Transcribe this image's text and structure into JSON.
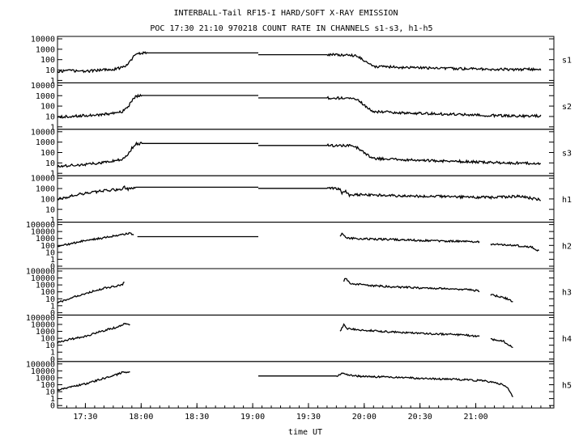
{
  "chart_data": {
    "type": "line",
    "title": "INTERBALL-Tail RF15-I HARD/SOFT X-RAY EMISSION",
    "subtitle": "POC 17:30 21:10 970218  COUNT RATE IN CHANNELS s1-s3, h1-h5",
    "xlabel": "time UT",
    "x_ticks": [
      "17:30",
      "18:00",
      "18:30",
      "19:00",
      "19:30",
      "20:00",
      "20:30",
      "21:00"
    ],
    "xlim_minutes": [
      1035,
      1302
    ],
    "y_scale": "log",
    "grid": false,
    "panels": [
      {
        "name": "s1",
        "y_ticks": [
          "10000",
          "1000",
          "100",
          "10",
          "1"
        ],
        "ylim": [
          0.5,
          20000
        ],
        "segments": [
          [
            [
              1035,
              5
            ],
            [
              1042,
              6
            ],
            [
              1050,
              5
            ],
            [
              1058,
              7
            ],
            [
              1066,
              9
            ],
            [
              1070,
              14
            ],
            [
              1073,
              30
            ],
            [
              1075,
              120
            ],
            [
              1077,
              350
            ],
            [
              1079,
              500
            ],
            [
              1083,
              550
            ],
            [
              1143,
              550
            ]
          ],
          [
            [
              1143,
              350
            ],
            [
              1180,
              350
            ],
            [
              1192,
              330
            ],
            [
              1196,
              250
            ],
            [
              1199,
              120
            ],
            [
              1202,
              40
            ],
            [
              1205,
              18
            ],
            [
              1220,
              14
            ],
            [
              1240,
              11
            ],
            [
              1260,
              9
            ],
            [
              1280,
              8
            ],
            [
              1295,
              9
            ]
          ]
        ]
      },
      {
        "name": "s2",
        "y_ticks": [
          "10000",
          "1000",
          "100",
          "10",
          "1"
        ],
        "ylim": [
          0.5,
          20000
        ],
        "segments": [
          [
            [
              1035,
              6
            ],
            [
              1045,
              8
            ],
            [
              1055,
              10
            ],
            [
              1063,
              14
            ],
            [
              1070,
              25
            ],
            [
              1073,
              80
            ],
            [
              1075,
              400
            ],
            [
              1077,
              1200
            ],
            [
              1080,
              1500
            ],
            [
              1143,
              1500
            ]
          ],
          [
            [
              1143,
              800
            ],
            [
              1180,
              800
            ],
            [
              1192,
              760
            ],
            [
              1196,
              500
            ],
            [
              1199,
              200
            ],
            [
              1202,
              60
            ],
            [
              1205,
              25
            ],
            [
              1220,
              18
            ],
            [
              1240,
              14
            ],
            [
              1260,
              10
            ],
            [
              1280,
              8
            ],
            [
              1295,
              8
            ]
          ]
        ]
      },
      {
        "name": "s3",
        "y_ticks": [
          "10000",
          "1000",
          "100",
          "10",
          "1"
        ],
        "ylim": [
          0.5,
          20000
        ],
        "segments": [
          [
            [
              1035,
              3
            ],
            [
              1045,
              4
            ],
            [
              1055,
              6
            ],
            [
              1063,
              10
            ],
            [
              1070,
              18
            ],
            [
              1073,
              60
            ],
            [
              1075,
              300
            ],
            [
              1077,
              900
            ],
            [
              1080,
              1000
            ],
            [
              1143,
              1000
            ]
          ],
          [
            [
              1143,
              600
            ],
            [
              1180,
              600
            ],
            [
              1192,
              560
            ],
            [
              1196,
              350
            ],
            [
              1199,
              150
            ],
            [
              1202,
              50
            ],
            [
              1205,
              22
            ],
            [
              1220,
              16
            ],
            [
              1240,
              12
            ],
            [
              1260,
              9
            ],
            [
              1280,
              7
            ],
            [
              1295,
              6
            ]
          ]
        ]
      },
      {
        "name": "h1",
        "y_ticks": [
          "10000",
          "1000",
          "100",
          "10",
          "1"
        ],
        "ylim": [
          0.5,
          20000
        ],
        "segments": [
          [
            [
              1035,
              100
            ],
            [
              1040,
              150
            ],
            [
              1045,
              300
            ],
            [
              1052,
              500
            ],
            [
              1060,
              800
            ],
            [
              1065,
              1000
            ],
            [
              1069,
              900
            ],
            [
              1071,
              2000
            ],
            [
              1073,
              1200
            ],
            [
              1077,
              2000
            ],
            [
              1143,
              2000
            ]
          ],
          [
            [
              1143,
              1500
            ],
            [
              1180,
              1500
            ],
            [
              1187,
              1400
            ],
            [
              1188,
              400
            ],
            [
              1190,
              800
            ],
            [
              1192,
              250
            ],
            [
              1198,
              300
            ],
            [
              1210,
              250
            ],
            [
              1230,
              200
            ],
            [
              1250,
              170
            ],
            [
              1270,
              150
            ],
            [
              1282,
              200
            ],
            [
              1290,
              120
            ],
            [
              1295,
              90
            ]
          ]
        ]
      },
      {
        "name": "h2",
        "y_ticks": [
          "100000",
          "10000",
          "1000",
          "100",
          "10",
          "1",
          "0"
        ],
        "ylim": [
          0.1,
          200000
        ],
        "segments": [
          [
            [
              1035,
              100
            ],
            [
              1040,
              200
            ],
            [
              1045,
              400
            ],
            [
              1052,
              1000
            ],
            [
              1060,
              2000
            ],
            [
              1068,
              5000
            ],
            [
              1072,
              8000
            ],
            [
              1074,
              10000
            ],
            [
              1076,
              7000
            ]
          ],
          [
            [
              1078,
              3000
            ],
            [
              1143,
              3000
            ]
          ],
          [
            [
              1187,
              3000
            ],
            [
              1188,
              10000
            ],
            [
              1190,
              2000
            ],
            [
              1195,
              1500
            ],
            [
              1210,
              1200
            ],
            [
              1230,
              800
            ],
            [
              1250,
              600
            ],
            [
              1262,
              500
            ]
          ],
          [
            [
              1268,
              200
            ],
            [
              1280,
              150
            ],
            [
              1290,
              80
            ],
            [
              1294,
              20
            ]
          ]
        ]
      },
      {
        "name": "h3",
        "y_ticks": [
          "100000",
          "10000",
          "1000",
          "100",
          "10",
          "1",
          "0"
        ],
        "ylim": [
          0.1,
          200000
        ],
        "segments": [
          [
            [
              1035,
              3
            ],
            [
              1040,
              10
            ],
            [
              1045,
              30
            ],
            [
              1050,
              80
            ],
            [
              1055,
              200
            ],
            [
              1060,
              500
            ],
            [
              1066,
              1000
            ],
            [
              1070,
              2000
            ],
            [
              1071,
              5000
            ]
          ],
          [
            [
              1189,
              5000
            ],
            [
              1190,
              20000
            ],
            [
              1192,
              3000
            ],
            [
              1200,
              1500
            ],
            [
              1215,
              800
            ],
            [
              1235,
              500
            ],
            [
              1255,
              300
            ],
            [
              1262,
              200
            ]
          ],
          [
            [
              1268,
              50
            ],
            [
              1275,
              20
            ],
            [
              1280,
              5
            ]
          ]
        ]
      },
      {
        "name": "h4",
        "y_ticks": [
          "100000",
          "10000",
          "1000",
          "100",
          "10",
          "1",
          "0"
        ],
        "ylim": [
          0.1,
          200000
        ],
        "segments": [
          [
            [
              1035,
              30
            ],
            [
              1040,
              80
            ],
            [
              1045,
              150
            ],
            [
              1050,
              300
            ],
            [
              1056,
              1000
            ],
            [
              1062,
              3000
            ],
            [
              1068,
              8000
            ],
            [
              1071,
              20000
            ],
            [
              1074,
              15000
            ]
          ],
          [
            [
              1187,
              2000
            ],
            [
              1189,
              15000
            ],
            [
              1191,
              4000
            ],
            [
              1195,
              3000
            ],
            [
              1210,
              1500
            ],
            [
              1230,
              800
            ],
            [
              1250,
              500
            ],
            [
              1262,
              300
            ]
          ],
          [
            [
              1268,
              100
            ],
            [
              1275,
              50
            ],
            [
              1280,
              5
            ]
          ]
        ]
      },
      {
        "name": "h5",
        "y_ticks": [
          "100000",
          "10000",
          "1000",
          "100",
          "10",
          "1",
          "0"
        ],
        "ylim": [
          0.1,
          200000
        ],
        "segments": [
          [
            [
              1035,
              20
            ],
            [
              1040,
              50
            ],
            [
              1045,
              100
            ],
            [
              1050,
              200
            ],
            [
              1055,
              500
            ],
            [
              1062,
              2000
            ],
            [
              1067,
              5000
            ],
            [
              1070,
              12000
            ],
            [
              1072,
              8000
            ],
            [
              1074,
              10000
            ]
          ],
          [
            [
              1143,
              3000
            ],
            [
              1185,
              3000
            ],
            [
              1189,
              8000
            ],
            [
              1192,
              4000
            ],
            [
              1200,
              2500
            ],
            [
              1215,
              2000
            ],
            [
              1235,
              1200
            ],
            [
              1255,
              800
            ],
            [
              1265,
              500
            ],
            [
              1273,
              200
            ],
            [
              1277,
              50
            ],
            [
              1280,
              2
            ]
          ]
        ]
      }
    ]
  }
}
